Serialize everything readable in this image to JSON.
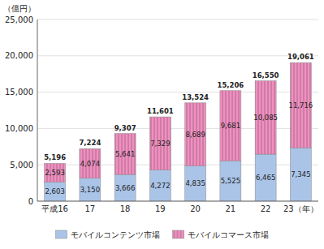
{
  "chart_data": {
    "type": "bar",
    "stacked": true,
    "data_labels": true,
    "grid": true,
    "legend": "bottom",
    "y_label": "（億円）",
    "categories": [
      "平成16",
      "17",
      "18",
      "19",
      "20",
      "21",
      "22",
      "23（年）"
    ],
    "series": [
      {
        "name": "モバイルコンテンツ市場",
        "color": "#aac4e8",
        "values": [
          2603,
          3150,
          3666,
          4272,
          4835,
          5525,
          6465,
          7345
        ],
        "value_labels": [
          "2,603",
          "3,150",
          "3,666",
          "4,272",
          "4,835",
          "5,525",
          "6,465",
          "7,345"
        ]
      },
      {
        "name": "モバイルコマース市場",
        "color": "#f090c0",
        "values": [
          2593,
          4074,
          5641,
          7329,
          8689,
          9681,
          10085,
          11716
        ],
        "value_labels": [
          "2,593",
          "4,074",
          "5,641",
          "7,329",
          "8,689",
          "9,681",
          "10,085",
          "11,716"
        ]
      }
    ],
    "totals": [
      5196,
      7224,
      9307,
      11601,
      13524,
      15206,
      16550,
      19061
    ],
    "total_labels": [
      "5,196",
      "7,224",
      "9,307",
      "11,601",
      "13,524",
      "15,206",
      "16,550",
      "19,061"
    ],
    "ylim": [
      0,
      25000
    ],
    "yticks": [
      0,
      {
        "value": 5000,
        "label": "5,000"
      },
      {
        "value": 10000,
        "label": "10,000"
      },
      {
        "value": 15000,
        "label": "15,000"
      },
      {
        "value": 20000,
        "label": "20,000"
      },
      {
        "value": 25000,
        "label": "25,000"
      }
    ]
  }
}
